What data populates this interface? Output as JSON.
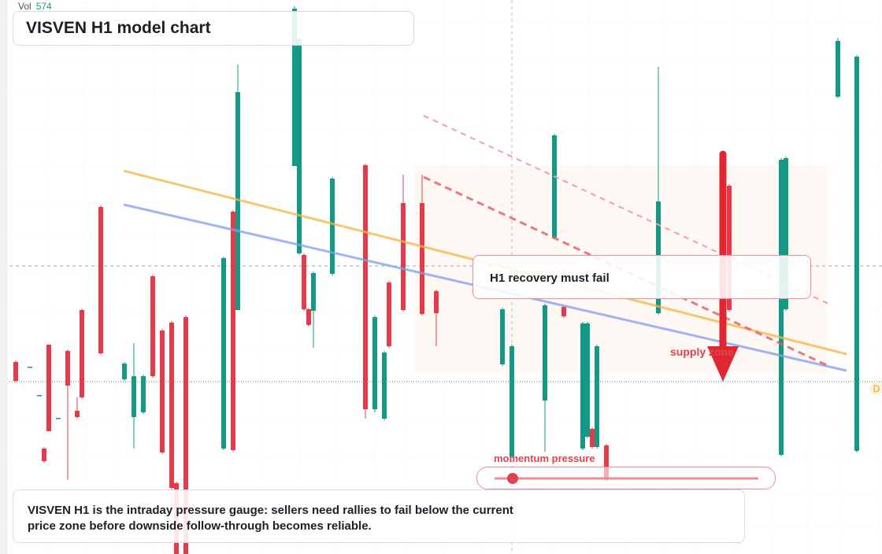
{
  "chart_data": {
    "type": "candlestick",
    "title": "VISVEN H1 model chart",
    "volume_label": "Vol",
    "volume_value": "574",
    "annotation": "H1 recovery must fail",
    "zone_label": "supply zone",
    "gauge_label": "momentum pressure",
    "note": "VISVEN H1 is the intraday pressure gauge: sellers need rallies to fail below the current price zone before downside follow-through becomes reliable.",
    "price_tag": "D",
    "up_color": "#129a86",
    "down_color": "#e8394a",
    "xlim": [
      0,
      184
    ],
    "ylim": [
      0,
      704
    ],
    "x": [
      1,
      4,
      6,
      7,
      8,
      10,
      12,
      14,
      15,
      19,
      24,
      26,
      28,
      30,
      32,
      34,
      35,
      37,
      45,
      47,
      48,
      60,
      61,
      62,
      63,
      64,
      68,
      75,
      77,
      79,
      80,
      83,
      87,
      90,
      104,
      106,
      113,
      115,
      117,
      121,
      122,
      123,
      124,
      126,
      137,
      152,
      163,
      164,
      175,
      179
    ],
    "open": [
      244,
      238,
      202,
      134,
      266,
      173,
      258,
      182,
      310,
      441,
      222,
      174,
      180,
      353,
      284,
      294,
      90,
      301,
      134,
      435,
      310,
      493,
      382,
      380,
      311,
      309,
      356,
      494,
      184,
      172,
      345,
      446,
      446,
      334,
      241,
      124,
      195,
      402,
      314,
      134,
      149,
      159,
      136,
      138,
      306,
      468,
      126,
      311,
      581,
      131
    ],
    "high": [
      246,
      238,
      202,
      136,
      266,
      173,
      260,
      199,
      312,
      443,
      244,
      268,
      228,
      355,
      286,
      296,
      92,
      303,
      378,
      437,
      622,
      696,
      656,
      382,
      313,
      359,
      479,
      496,
      303,
      258,
      347,
      482,
      482,
      336,
      313,
      266,
      318,
      534,
      316,
      295,
      295,
      161,
      266,
      140,
      619,
      470,
      503,
      505,
      656,
      634
    ],
    "low": [
      218,
      238,
      202,
      116,
      156,
      173,
      94,
      172,
      197,
      253,
      220,
      134,
      178,
      224,
      127,
      60,
      0,
      0,
      132,
      130,
      310,
      493,
      380,
      309,
      289,
      262,
      354,
      172,
      180,
      170,
      262,
      308,
      303,
      264,
      239,
      122,
      130,
      400,
      300,
      132,
      147,
      134,
      134,
      92,
      304,
      308,
      124,
      309,
      579,
      129
    ],
    "close": [
      220,
      238,
      202,
      118,
      156,
      173,
      214,
      174,
      199,
      255,
      242,
      226,
      226,
      226,
      129,
      84,
      0,
      0,
      376,
      132,
      587,
      693,
      654,
      311,
      291,
      357,
      477,
      184,
      301,
      256,
      264,
      310,
      305,
      306,
      311,
      264,
      316,
      532,
      302,
      293,
      293,
      136,
      264,
      94,
      448,
      310,
      501,
      503,
      652,
      632
    ]
  }
}
